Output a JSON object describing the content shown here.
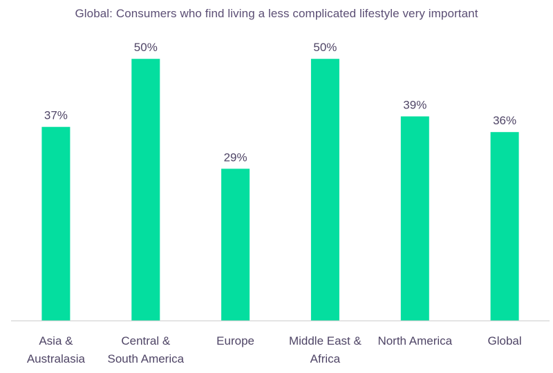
{
  "colors": {
    "bar": "#04de9f",
    "axis": "#d4d4d4",
    "text": "#4f4566",
    "title": "#5b4e74"
  },
  "chart_data": {
    "type": "bar",
    "title": "Global: Consumers who find living a less complicated lifestyle very important",
    "xlabel": "",
    "ylabel": "",
    "ylim": [
      0,
      52
    ],
    "grid": false,
    "legend": "none",
    "categories": [
      [
        "Asia &",
        "Australasia"
      ],
      [
        "Central &",
        "South America"
      ],
      [
        "Europe"
      ],
      [
        "Middle East &",
        "Africa"
      ],
      [
        "North America"
      ],
      [
        "Global"
      ]
    ],
    "values": [
      37,
      50,
      29,
      50,
      39,
      36
    ],
    "value_labels": [
      "37%",
      "50%",
      "29%",
      "50%",
      "39%",
      "36%"
    ]
  }
}
